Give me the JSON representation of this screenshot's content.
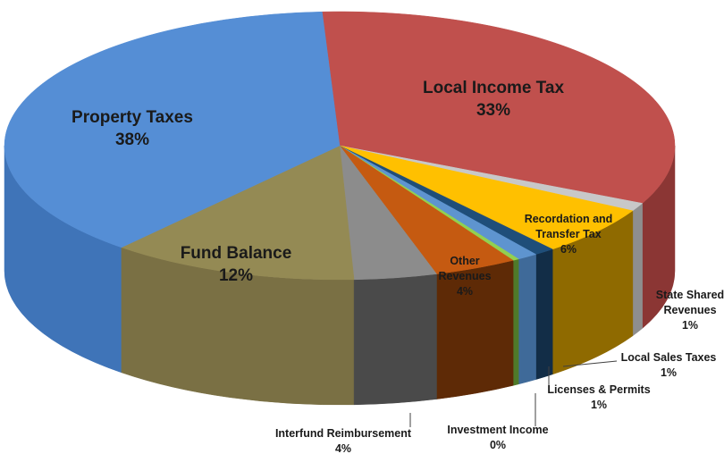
{
  "chart_data": {
    "type": "pie",
    "style": "3d-exploded-none",
    "title": "",
    "slices": [
      {
        "name": "Local Income Tax",
        "percent_label": "33%",
        "value": 33,
        "color": "#c0504d",
        "side_color": "#8b3634"
      },
      {
        "name": "State Shared Revenues",
        "percent_label": "1%",
        "value": 1,
        "color": "#c8c8c8",
        "side_color": "#8e8e8e"
      },
      {
        "name": "Recordation and Transfer Tax",
        "percent_label": "6%",
        "value": 6,
        "color": "#ffc000",
        "side_color": "#8f6a00"
      },
      {
        "name": "Local Sales Taxes",
        "percent_label": "1%",
        "value": 1,
        "color": "#1f4e79",
        "side_color": "#122d47"
      },
      {
        "name": "Licenses & Permits",
        "percent_label": "1%",
        "value": 1,
        "color": "#5e94cf",
        "side_color": "#3f6a99"
      },
      {
        "name": "Investment Income",
        "percent_label": "0%",
        "value": 0.3,
        "color": "#92d050",
        "side_color": "#4f7a2a"
      },
      {
        "name": "Other Revenues",
        "percent_label": "4%",
        "value": 4,
        "color": "#c55a11",
        "side_color": "#5e2a06"
      },
      {
        "name": "Interfund Reimbursement",
        "percent_label": "4%",
        "value": 4,
        "color": "#8c8c8c",
        "side_color": "#4a4a4a"
      },
      {
        "name": "Fund Balance",
        "percent_label": "12%",
        "value": 12,
        "color": "#948a54",
        "side_color": "#7a7044"
      },
      {
        "name": "Property Taxes",
        "percent_label": "38%",
        "value": 38,
        "color": "#558ed5",
        "side_color": "#3f74b8"
      }
    ],
    "legend": "none",
    "data_labels": "category-name-and-percent"
  }
}
